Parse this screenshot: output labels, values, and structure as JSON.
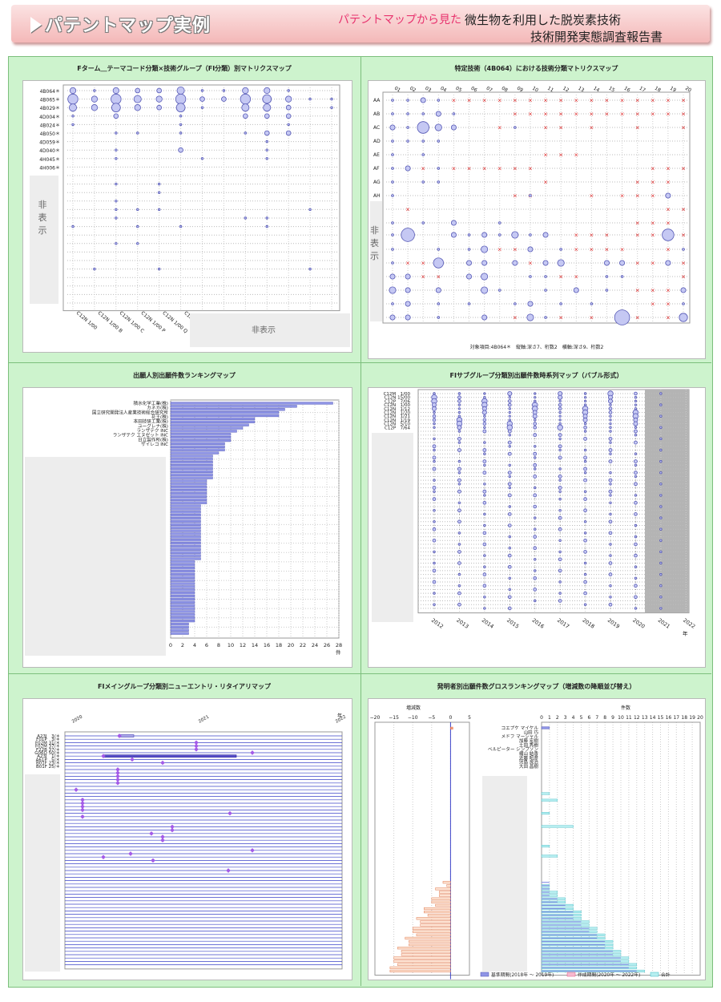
{
  "header": {
    "title": "パテントマップ実例",
    "subtitle_red": "パテントマップから見た",
    "subtitle_line1": "微生物を利用した脱炭素技術",
    "subtitle_line2": "技術開発実態調査報告書"
  },
  "hidden_label": "非表示",
  "hidden_label_vertical": [
    "非",
    "表",
    "示"
  ],
  "chart_data": [
    {
      "id": "fterm-fi-matrix",
      "type": "scatter",
      "title": "Fターム＿テーマコード分類×技術グループ（FI分類）別マトリクスマップ",
      "row_labels": [
        "4B064＊",
        "4B065＊",
        "4B029＊",
        "4D004＊",
        "4B024＊",
        "4B050＊",
        "4D059＊",
        "4D040＊",
        "4H045＊",
        "4H006＊"
      ],
      "col_labels": [
        "C12N 1/00",
        "C12N 1/00 B",
        "C12N 1/00 C",
        "C12N 1/00 P",
        "C12N 1/00 Q",
        "C12N"
      ],
      "bubbles": [
        {
          "r": 0,
          "c": 0,
          "v": 3
        },
        {
          "r": 0,
          "c": 1,
          "v": 1
        },
        {
          "r": 0,
          "c": 2,
          "v": 3
        },
        {
          "r": 0,
          "c": 3,
          "v": 2
        },
        {
          "r": 0,
          "c": 4,
          "v": 2
        },
        {
          "r": 0,
          "c": 5,
          "v": 4
        },
        {
          "r": 0,
          "c": 6,
          "v": 1
        },
        {
          "r": 0,
          "c": 7,
          "v": 1
        },
        {
          "r": 0,
          "c": 8,
          "v": 3
        },
        {
          "r": 0,
          "c": 9,
          "v": 3
        },
        {
          "r": 0,
          "c": 10,
          "v": 1
        },
        {
          "r": 1,
          "c": 0,
          "v": 6
        },
        {
          "r": 1,
          "c": 1,
          "v": 3
        },
        {
          "r": 1,
          "c": 2,
          "v": 6
        },
        {
          "r": 1,
          "c": 3,
          "v": 4
        },
        {
          "r": 1,
          "c": 4,
          "v": 3
        },
        {
          "r": 1,
          "c": 5,
          "v": 6
        },
        {
          "r": 1,
          "c": 6,
          "v": 2
        },
        {
          "r": 1,
          "c": 7,
          "v": 2
        },
        {
          "r": 1,
          "c": 8,
          "v": 6
        },
        {
          "r": 1,
          "c": 9,
          "v": 5
        },
        {
          "r": 1,
          "c": 10,
          "v": 3
        },
        {
          "r": 1,
          "c": 11,
          "v": 1
        },
        {
          "r": 1,
          "c": 12,
          "v": 1
        },
        {
          "r": 2,
          "c": 0,
          "v": 4
        },
        {
          "r": 2,
          "c": 1,
          "v": 3
        },
        {
          "r": 2,
          "c": 2,
          "v": 5
        },
        {
          "r": 2,
          "c": 3,
          "v": 3
        },
        {
          "r": 2,
          "c": 4,
          "v": 2
        },
        {
          "r": 2,
          "c": 5,
          "v": 5
        },
        {
          "r": 2,
          "c": 6,
          "v": 1
        },
        {
          "r": 2,
          "c": 8,
          "v": 4
        },
        {
          "r": 2,
          "c": 9,
          "v": 4
        },
        {
          "r": 2,
          "c": 10,
          "v": 2
        },
        {
          "r": 2,
          "c": 12,
          "v": 1
        },
        {
          "r": 3,
          "c": 0,
          "v": 1
        },
        {
          "r": 3,
          "c": 2,
          "v": 2
        },
        {
          "r": 3,
          "c": 5,
          "v": 1
        },
        {
          "r": 3,
          "c": 8,
          "v": 2
        },
        {
          "r": 3,
          "c": 9,
          "v": 2
        },
        {
          "r": 3,
          "c": 10,
          "v": 2
        },
        {
          "r": 4,
          "c": 0,
          "v": 1
        },
        {
          "r": 4,
          "c": 5,
          "v": 1
        },
        {
          "r": 4,
          "c": 10,
          "v": 1
        },
        {
          "r": 5,
          "c": 2,
          "v": 1
        },
        {
          "r": 5,
          "c": 3,
          "v": 1
        },
        {
          "r": 5,
          "c": 5,
          "v": 1
        },
        {
          "r": 5,
          "c": 8,
          "v": 1
        },
        {
          "r": 5,
          "c": 9,
          "v": 2
        },
        {
          "r": 5,
          "c": 10,
          "v": 2
        },
        {
          "r": 6,
          "c": 9,
          "v": 1
        },
        {
          "r": 7,
          "c": 2,
          "v": 1
        },
        {
          "r": 7,
          "c": 5,
          "v": 2
        },
        {
          "r": 7,
          "c": 9,
          "v": 1
        },
        {
          "r": 8,
          "c": 2,
          "v": 1
        },
        {
          "r": 8,
          "c": 6,
          "v": 1
        },
        {
          "r": 8,
          "c": 9,
          "v": 1
        },
        {
          "r": 11,
          "c": 2,
          "v": 1
        },
        {
          "r": 11,
          "c": 4,
          "v": 1
        },
        {
          "r": 12,
          "c": 4,
          "v": 1
        },
        {
          "r": 13,
          "c": 2,
          "v": 1
        },
        {
          "r": 14,
          "c": 2,
          "v": 1
        },
        {
          "r": 14,
          "c": 3,
          "v": 1
        },
        {
          "r": 14,
          "c": 4,
          "v": 1
        },
        {
          "r": 14,
          "c": 11,
          "v": 1
        },
        {
          "r": 15,
          "c": 2,
          "v": 1
        },
        {
          "r": 15,
          "c": 8,
          "v": 1
        },
        {
          "r": 15,
          "c": 9,
          "v": 1
        },
        {
          "r": 16,
          "c": 0,
          "v": 1
        },
        {
          "r": 16,
          "c": 3,
          "v": 1
        },
        {
          "r": 16,
          "c": 5,
          "v": 1
        },
        {
          "r": 16,
          "c": 9,
          "v": 1
        },
        {
          "r": 18,
          "c": 2,
          "v": 1
        },
        {
          "r": 18,
          "c": 3,
          "v": 1
        },
        {
          "r": 21,
          "c": 1,
          "v": 1
        },
        {
          "r": 21,
          "c": 4,
          "v": 1
        },
        {
          "r": 21,
          "c": 11,
          "v": 1
        }
      ]
    },
    {
      "id": "specific-tech-matrix",
      "type": "scatter",
      "title": "特定技術（4B064）における技術分類マトリクスマップ",
      "row_labels": [
        "AA",
        "AB",
        "AC",
        "AD",
        "AE",
        "AF",
        "AG",
        "AH"
      ],
      "col_labels": [
        "01",
        "02",
        "03",
        "04",
        "05",
        "06",
        "07",
        "08",
        "09",
        "10",
        "11",
        "12",
        "13",
        "14",
        "15",
        "16",
        "17",
        "18",
        "19",
        "20"
      ],
      "footnote": "対象項目:4B064＊　縦軸:深さ7、桁数2　横軸:深さ9、桁数2"
    },
    {
      "id": "applicant-ranking",
      "type": "bar",
      "title": "出願人別出願件数ランキングマップ",
      "categories": [
        "積水化学工業(株)",
        "カネカ(株)",
        "国立研究開発法人産業技術総合研究所",
        "花王(株)",
        "本田技研工業(株)",
        "ユーグレナ(株)",
        "ランザテク INC",
        "ランザテク エヌゼット INC",
        "日立製作所(株)",
        "ザイレコ INC"
      ],
      "values": [
        27,
        21,
        19,
        18,
        18,
        14,
        14,
        13,
        12,
        11
      ],
      "hidden_values": [
        10,
        10,
        10,
        9,
        9,
        9,
        8,
        7,
        7,
        7,
        7,
        7,
        7,
        7,
        7,
        6,
        6,
        6,
        6,
        6,
        6,
        6,
        6,
        5,
        5,
        5,
        5,
        5,
        5,
        5,
        5,
        5,
        5,
        5,
        5,
        5,
        5,
        5,
        5,
        5,
        5,
        4,
        4,
        4,
        4,
        4,
        4,
        4,
        4,
        4,
        4,
        4,
        4,
        4,
        4,
        4,
        4,
        4,
        4,
        4,
        4,
        3,
        3,
        3,
        3
      ],
      "xlim": [
        0,
        28
      ],
      "xticks": [
        "0",
        "2",
        "4",
        "6",
        "8",
        "10",
        "12",
        "14",
        "16",
        "18",
        "20",
        "22",
        "24",
        "26",
        "28"
      ],
      "xunit": "件"
    },
    {
      "id": "fi-subgroup-timeseries",
      "type": "scatter",
      "title": "FIサブグループ分類別出願件数時系列マップ（バブル形式）",
      "row_labels": [
        "C12M　1/00",
        "C12N 15/00",
        "C12P　7/06",
        "C12N　1/00",
        "C12N　1/12",
        "C12N　1/20",
        "C12N　1/21",
        "C12N　1/19",
        "C12N　5/10",
        "C12P　7/64"
      ],
      "years": [
        "2012",
        "2013",
        "2014",
        "2015",
        "2016",
        "2017",
        "2018",
        "2019",
        "2020",
        "2021",
        "2022"
      ],
      "year_unit": "年"
    },
    {
      "id": "fi-new-entry",
      "type": "scatter",
      "title": "FIメイングループ分類別ニューエントリ・リタイアリマップ",
      "row_labels": [
        "A23J　3/＊",
        "F01P　3/＊",
        "F02M 31/＊",
        "F02M 37/＊",
        "F22B 37/＊",
        "G06Q 50/＊",
        "A23J　1/＊",
        "A61P　5/＊",
        "B01F 23/＊",
        "B01F 25/＊"
      ],
      "years": [
        "2020",
        "2021",
        "2022"
      ],
      "year_unit": "年"
    },
    {
      "id": "inventor-gross-ranking",
      "type": "bar",
      "title": "発明者別出願件数グロスランキングマップ（増減数の降順並び替え）",
      "left_axis_label": "増減数",
      "left_ticks": [
        "−20",
        "−15",
        "−10",
        "−5",
        "0",
        "5"
      ],
      "right_axis_label": "件数",
      "right_ticks": [
        "0",
        "1",
        "2",
        "3",
        "4",
        "5",
        "6",
        "7",
        "8",
        "9",
        "10",
        "11",
        "12",
        "13",
        "14",
        "15",
        "16",
        "17",
        "18",
        "19",
        "20"
      ],
      "categories": [
        "コエプケ マイケル",
        "山田 巧",
        "メドフ マーシャル",
        "加藤 宏樹",
        "土田 秀樹",
        "ベルピーター シンプソン",
        "横山 結香",
        "近藤 昭彦",
        "児島 良治",
        "大田 昌樹"
      ],
      "legend": [
        "基準期間(2018年 ～ 2019年)",
        "作成期間(2020年 ～ 2022年)",
        "合計"
      ]
    }
  ]
}
